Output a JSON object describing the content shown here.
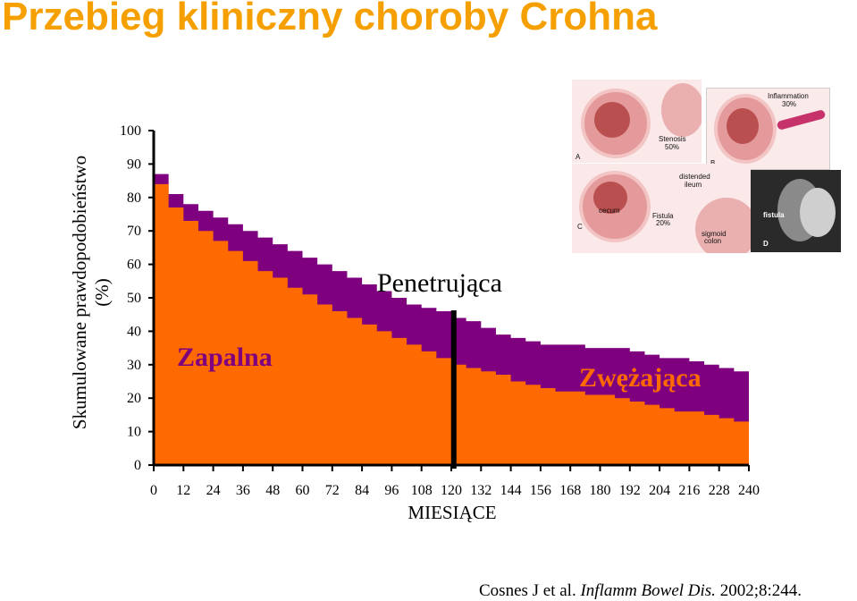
{
  "title": "Przebieg kliniczny choroby Crohna",
  "citation": {
    "authors": "Cosnes J et al.",
    "journal": "Inflamm Bowel Dis.",
    "ref": "2002;8:244."
  },
  "illustration": {
    "labels": {
      "a": "A",
      "b": "B",
      "c": "C",
      "d": "D",
      "stenosis": "Stenosis",
      "stenosis_pct": "50%",
      "inflammation": "Inflammation",
      "inflammation_pct": "30%",
      "distended": "distended",
      "ileum": "ileum",
      "cecum": "cecum",
      "fistula_label": "Fistula",
      "fistula_pct": "20%",
      "sigmoid": "sigmoid",
      "colon": "colon",
      "fistula": "fistula"
    }
  },
  "chart_data": {
    "type": "area",
    "xlabel": "MIESIĄCE",
    "ylabel": "Skumulowane prawdopodobieństwo (%)",
    "xlim": [
      0,
      240
    ],
    "ylim": [
      0,
      100
    ],
    "xticks": [
      0,
      12,
      24,
      36,
      48,
      60,
      72,
      84,
      96,
      108,
      120,
      132,
      144,
      156,
      168,
      180,
      192,
      204,
      216,
      228,
      240
    ],
    "yticks": [
      0,
      10,
      20,
      30,
      40,
      50,
      60,
      70,
      80,
      90,
      100
    ],
    "annotations": {
      "inflammatory": "Zapalna",
      "penetrating": "Penetrująca",
      "stricturing": "Zwężająca"
    },
    "vline_x": 121,
    "x": [
      0,
      6,
      12,
      18,
      24,
      30,
      36,
      42,
      48,
      54,
      60,
      66,
      72,
      78,
      84,
      90,
      96,
      102,
      108,
      114,
      120,
      126,
      132,
      138,
      144,
      150,
      156,
      162,
      168,
      174,
      180,
      186,
      192,
      198,
      204,
      210,
      216,
      222,
      228,
      234,
      240
    ],
    "series": [
      {
        "name": "Zapalna",
        "values": [
          84,
          77,
          73,
          70,
          67,
          64,
          61,
          58,
          56,
          53,
          51,
          48,
          46,
          44,
          42,
          40,
          38,
          36,
          34,
          32,
          30,
          29,
          28,
          27,
          25,
          24,
          23,
          22,
          22,
          21,
          21,
          20,
          19,
          18,
          17,
          16,
          16,
          15,
          14,
          13,
          12
        ]
      },
      {
        "name": "Penetrująca",
        "values": [
          87,
          81,
          78,
          76,
          74,
          72,
          70,
          68,
          66,
          64,
          62,
          60,
          58,
          56,
          54,
          52,
          50,
          48,
          47,
          46,
          44,
          43,
          41,
          39,
          38,
          37,
          36,
          36,
          36,
          35,
          35,
          35,
          34,
          33,
          32,
          32,
          31,
          30,
          29,
          28,
          28
        ]
      }
    ],
    "colors": {
      "inflammatory": "#FF6A00",
      "penetrating": "#7F007F",
      "axis": "#000000"
    },
    "legend": "none",
    "grid": false
  }
}
